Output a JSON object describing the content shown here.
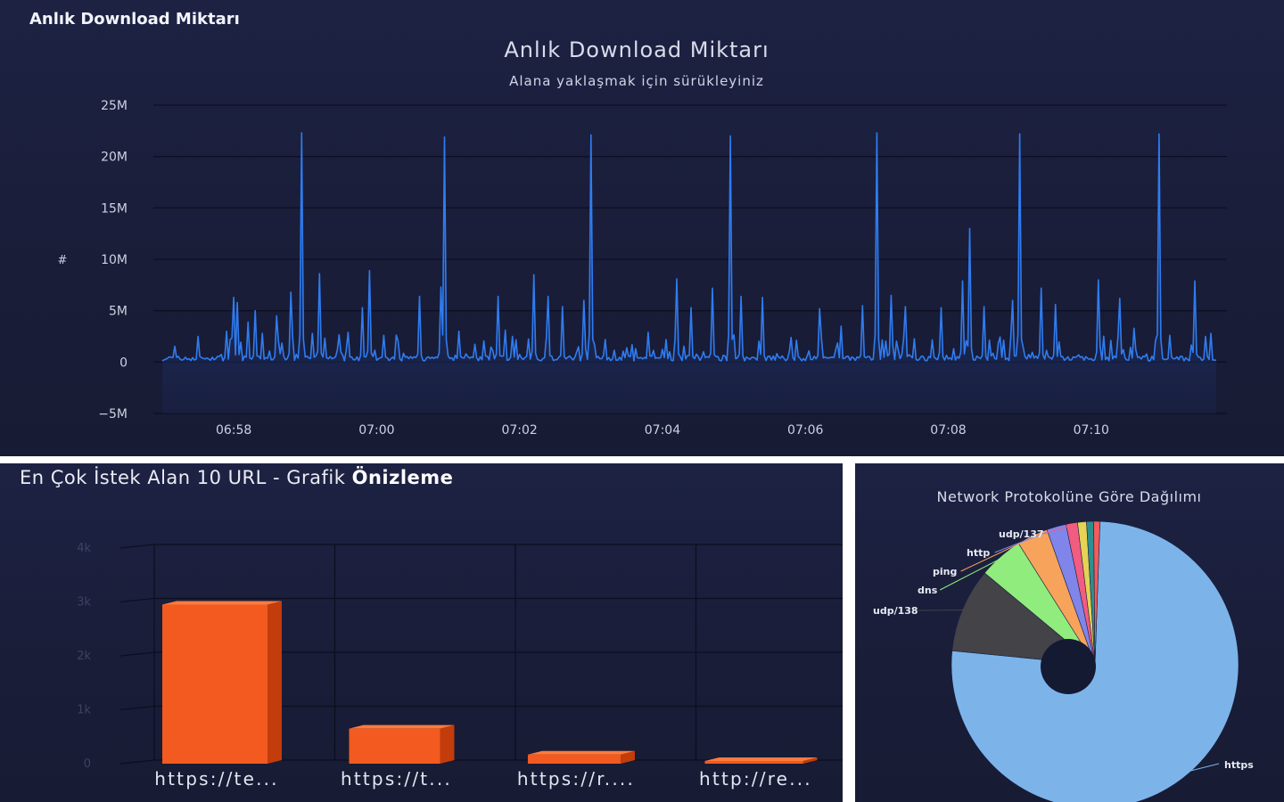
{
  "top_panel": {
    "heading": "Anlık Download Miktarı"
  },
  "bar_panel": {
    "heading_plain": "En Çok İstek Alan 10 URL - Grafik ",
    "heading_bold": "Önizleme"
  },
  "colors": {
    "panel_bg": "#1b2040",
    "line": "#2f7cf0",
    "area_top": "#1e4a9a",
    "bar_front": "#f25a20",
    "bar_side": "#c9400e",
    "grid": "#0e1124",
    "https": "#7cb4ea",
    "udp138": "#434348",
    "dns": "#90ed7d",
    "ping": "#f7a35c",
    "http": "#8085e9",
    "udp137": "#f15c80",
    "slice7": "#e4d354",
    "slice8": "#2b908f",
    "slice9": "#f45b5b"
  },
  "chart_data": [
    {
      "type": "area",
      "title": "Anlık Download Miktarı",
      "subtitle": "Alana yaklaşmak için sürükleyiniz",
      "ylabel": "#",
      "xlabel": "",
      "ylim": [
        -5000000,
        25000000
      ],
      "y_ticks": [
        "25M",
        "20M",
        "15M",
        "10M",
        "5M",
        "0",
        "−5M"
      ],
      "x_ticks": [
        "06:58",
        "07:00",
        "07:02",
        "07:04",
        "07:06",
        "07:08",
        "07:10"
      ],
      "x_range": [
        "06:57:00",
        "07:11:45"
      ],
      "baseline": 400000,
      "series": [
        {
          "values_note_free": true,
          "peaks": [
            {
              "time": "06:57:30",
              "value": 2500000
            },
            {
              "time": "06:57:54",
              "value": 3000000
            },
            {
              "time": "06:58:00",
              "value": 6300000
            },
            {
              "time": "06:58:03",
              "value": 5800000
            },
            {
              "time": "06:58:12",
              "value": 3900000
            },
            {
              "time": "06:58:18",
              "value": 5000000
            },
            {
              "time": "06:58:24",
              "value": 2800000
            },
            {
              "time": "06:58:36",
              "value": 4500000
            },
            {
              "time": "06:58:48",
              "value": 6800000
            },
            {
              "time": "06:58:57",
              "value": 22300000
            },
            {
              "time": "06:59:06",
              "value": 2800000
            },
            {
              "time": "06:59:12",
              "value": 8600000
            },
            {
              "time": "06:59:36",
              "value": 2900000
            },
            {
              "time": "06:59:48",
              "value": 5300000
            },
            {
              "time": "06:59:54",
              "value": 8900000
            },
            {
              "time": "07:00:06",
              "value": 2600000
            },
            {
              "time": "07:00:36",
              "value": 6400000
            },
            {
              "time": "07:00:54",
              "value": 7300000
            },
            {
              "time": "07:00:57",
              "value": 21900000
            },
            {
              "time": "07:01:09",
              "value": 3000000
            },
            {
              "time": "07:01:42",
              "value": 6400000
            },
            {
              "time": "07:01:54",
              "value": 2500000
            },
            {
              "time": "07:02:12",
              "value": 8500000
            },
            {
              "time": "07:02:24",
              "value": 6400000
            },
            {
              "time": "07:02:36",
              "value": 5400000
            },
            {
              "time": "07:02:54",
              "value": 6000000
            },
            {
              "time": "07:03:00",
              "value": 22100000
            },
            {
              "time": "07:03:12",
              "value": 2200000
            },
            {
              "time": "07:03:48",
              "value": 2900000
            },
            {
              "time": "07:04:12",
              "value": 8100000
            },
            {
              "time": "07:04:24",
              "value": 5300000
            },
            {
              "time": "07:04:42",
              "value": 7200000
            },
            {
              "time": "07:04:57",
              "value": 22000000
            },
            {
              "time": "07:05:06",
              "value": 6400000
            },
            {
              "time": "07:05:24",
              "value": 6300000
            },
            {
              "time": "07:05:48",
              "value": 2400000
            },
            {
              "time": "07:06:12",
              "value": 5200000
            },
            {
              "time": "07:06:30",
              "value": 3500000
            },
            {
              "time": "07:06:48",
              "value": 5500000
            },
            {
              "time": "07:07:00",
              "value": 22300000
            },
            {
              "time": "07:07:12",
              "value": 6500000
            },
            {
              "time": "07:07:24",
              "value": 5400000
            },
            {
              "time": "07:07:54",
              "value": 5300000
            },
            {
              "time": "07:08:12",
              "value": 7900000
            },
            {
              "time": "07:08:18",
              "value": 13000000
            },
            {
              "time": "07:08:30",
              "value": 5400000
            },
            {
              "time": "07:08:54",
              "value": 6000000
            },
            {
              "time": "07:09:00",
              "value": 22200000
            },
            {
              "time": "07:09:18",
              "value": 7200000
            },
            {
              "time": "07:09:30",
              "value": 5600000
            },
            {
              "time": "07:10:06",
              "value": 8000000
            },
            {
              "time": "07:10:24",
              "value": 6200000
            },
            {
              "time": "07:10:36",
              "value": 3300000
            },
            {
              "time": "07:10:57",
              "value": 22200000
            },
            {
              "time": "07:11:06",
              "value": 2600000
            },
            {
              "time": "07:11:27",
              "value": 7900000
            },
            {
              "time": "07:11:36",
              "value": 2500000
            }
          ]
        }
      ]
    },
    {
      "type": "bar",
      "title": "",
      "categories": [
        "https://te...",
        "https://t...",
        "https://r....",
        "http://re..."
      ],
      "values": [
        2950,
        650,
        170,
        40
      ],
      "ylim": [
        0,
        4000
      ],
      "y_ticks": [
        "4k",
        "3k",
        "2k",
        "1k",
        "0"
      ],
      "xlabel": "",
      "ylabel": ""
    },
    {
      "type": "pie",
      "title": "Network Protokolüne Göre Dağılımı",
      "slices": [
        {
          "label": "https",
          "value": 76.0
        },
        {
          "label": "udp/138",
          "value": 9.5
        },
        {
          "label": "dns",
          "value": 5.0
        },
        {
          "label": "ping",
          "value": 3.5
        },
        {
          "label": "http",
          "value": 2.2
        },
        {
          "label": "udp/137",
          "value": 1.3
        },
        {
          "label": "",
          "value": 1.0
        },
        {
          "label": "",
          "value": 0.8
        },
        {
          "label": "",
          "value": 0.7
        }
      ],
      "legend": "none"
    }
  ]
}
